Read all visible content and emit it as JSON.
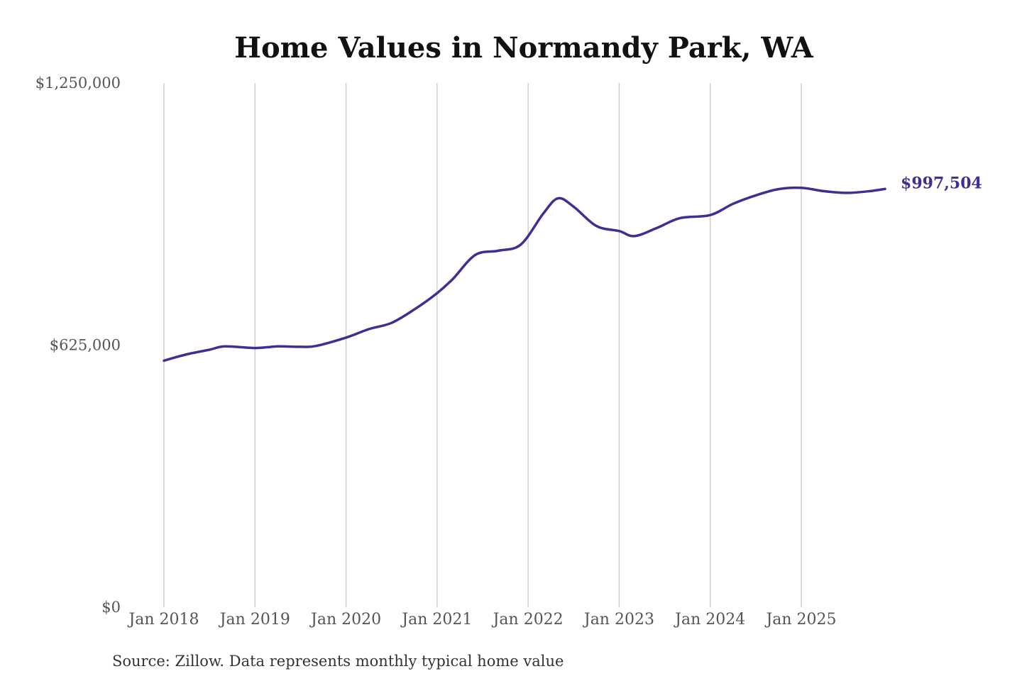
{
  "chart_data": {
    "type": "line",
    "title": "Home Values in Normandy Park, WA",
    "xlabel": "",
    "ylabel": "",
    "ylim": [
      0,
      1250000
    ],
    "yticks": [
      {
        "value": 0,
        "label": "$0"
      },
      {
        "value": 625000,
        "label": "$625,000"
      },
      {
        "value": 1250000,
        "label": "$1,250,000"
      }
    ],
    "xticks": [
      {
        "value": 2018.0,
        "label": "Jan 2018"
      },
      {
        "value": 2019.0,
        "label": "Jan 2019"
      },
      {
        "value": 2020.0,
        "label": "Jan 2020"
      },
      {
        "value": 2021.0,
        "label": "Jan 2021"
      },
      {
        "value": 2022.0,
        "label": "Jan 2022"
      },
      {
        "value": 2023.0,
        "label": "Jan 2023"
      },
      {
        "value": 2024.0,
        "label": "Jan 2024"
      },
      {
        "value": 2025.0,
        "label": "Jan 2025"
      }
    ],
    "grid": "vertical",
    "series": [
      {
        "color": "#3a3193",
        "end_label": "$997,504",
        "points": [
          [
            2018.0,
            588000
          ],
          [
            2018.25,
            603000
          ],
          [
            2018.5,
            614000
          ],
          [
            2018.67,
            622000
          ],
          [
            2019.0,
            618000
          ],
          [
            2019.25,
            622000
          ],
          [
            2019.5,
            621000
          ],
          [
            2019.67,
            623000
          ],
          [
            2020.0,
            643000
          ],
          [
            2020.25,
            663000
          ],
          [
            2020.5,
            678000
          ],
          [
            2020.75,
            710000
          ],
          [
            2021.0,
            749000
          ],
          [
            2021.17,
            782000
          ],
          [
            2021.42,
            840000
          ],
          [
            2021.67,
            850000
          ],
          [
            2021.92,
            865000
          ],
          [
            2022.17,
            940000
          ],
          [
            2022.33,
            975000
          ],
          [
            2022.5,
            955000
          ],
          [
            2022.75,
            909000
          ],
          [
            2023.0,
            897000
          ],
          [
            2023.17,
            885000
          ],
          [
            2023.42,
            905000
          ],
          [
            2023.67,
            928000
          ],
          [
            2024.0,
            935000
          ],
          [
            2024.25,
            962000
          ],
          [
            2024.5,
            982000
          ],
          [
            2024.75,
            997000
          ],
          [
            2025.0,
            1000000
          ],
          [
            2025.25,
            992000
          ],
          [
            2025.5,
            988000
          ],
          [
            2025.75,
            992000
          ],
          [
            2025.92,
            997504
          ]
        ]
      }
    ]
  },
  "footer": {
    "source": "Source: Zillow. Data represents monthly typical home value"
  }
}
